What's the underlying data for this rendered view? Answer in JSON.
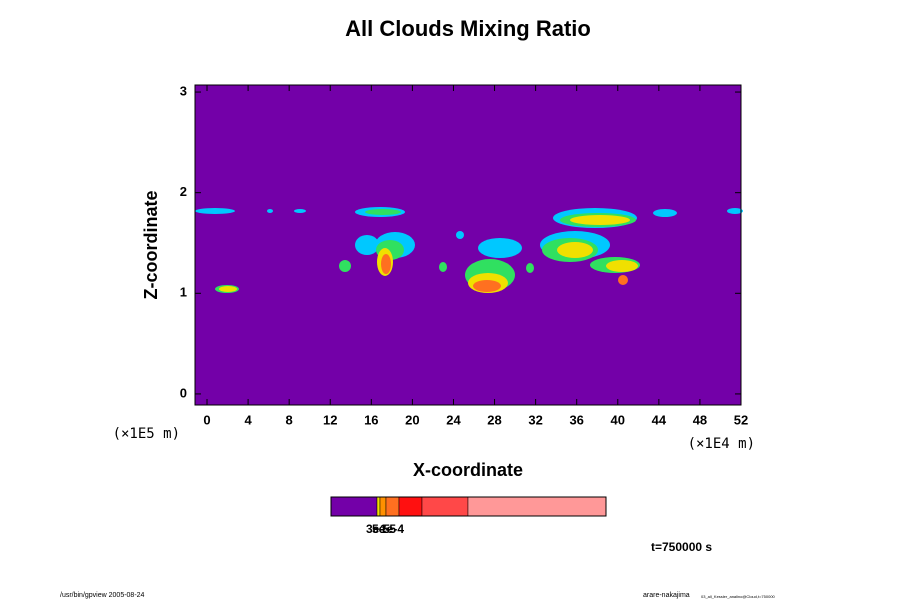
{
  "chart_data": {
    "type": "contour",
    "title": "All Clouds Mixing Ratio",
    "xlabel": "X-coordinate",
    "ylabel": "Z-coordinate",
    "xunit": "(×1E4 m)",
    "yunit": "(×1E5 m)",
    "xlim": [
      -1.17,
      52
    ],
    "ylim": [
      -0.11,
      3.07
    ],
    "xticks": [
      0,
      4,
      8,
      12,
      16,
      20,
      24,
      28,
      32,
      36,
      40,
      44,
      48,
      52
    ],
    "yticks": [
      0,
      1,
      2,
      3
    ],
    "background": "#7300a8",
    "colorbar": {
      "colors": [
        "#7300a8",
        "#f0e000",
        "#ff9000",
        "#ff7020",
        "#ff1010",
        "#ff4848",
        "#ff9898"
      ],
      "labels": [
        "3e-5",
        "5e-5",
        "1e-4"
      ]
    },
    "time": "t=750000 s",
    "footer_left": "/usr/bin/gpview 2005-08-24",
    "footer_right": "arare-nakajima",
    "footer_right_small": "03_all_Kessler_analino@Cloud,t=750000"
  }
}
